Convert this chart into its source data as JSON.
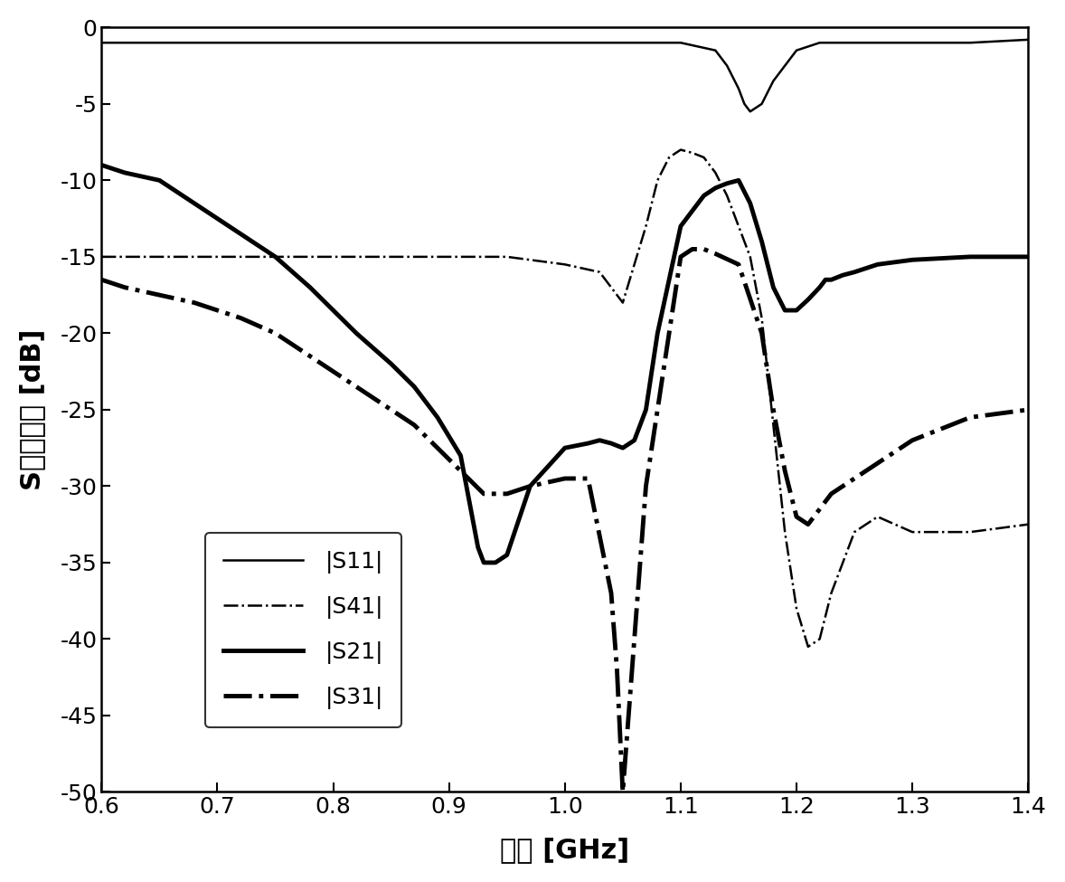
{
  "title": "",
  "xlabel": "频率 [GHz]",
  "ylabel": "S参数响应 [dB]",
  "xlim": [
    0.6,
    1.4
  ],
  "ylim": [
    -50,
    0
  ],
  "xticks": [
    0.6,
    0.7,
    0.8,
    0.9,
    1.0,
    1.1,
    1.2,
    1.3,
    1.4
  ],
  "yticks": [
    0,
    -5,
    -10,
    -15,
    -20,
    -25,
    -30,
    -35,
    -40,
    -45,
    -50
  ],
  "background_color": "#ffffff",
  "legend_labels": [
    "|S11|",
    "|S41|",
    "|S21|",
    "|S31|"
  ],
  "S11_x": [
    0.6,
    0.65,
    0.7,
    0.75,
    0.8,
    0.85,
    0.9,
    0.95,
    1.0,
    1.05,
    1.1,
    1.13,
    1.14,
    1.15,
    1.155,
    1.16,
    1.17,
    1.18,
    1.19,
    1.2,
    1.22,
    1.25,
    1.3,
    1.35,
    1.4
  ],
  "S11_y": [
    -1.0,
    -1.0,
    -1.0,
    -1.0,
    -1.0,
    -1.0,
    -1.0,
    -1.0,
    -1.0,
    -1.0,
    -1.0,
    -1.5,
    -2.5,
    -4.0,
    -5.0,
    -5.5,
    -5.0,
    -3.5,
    -2.5,
    -1.5,
    -1.0,
    -1.0,
    -1.0,
    -1.0,
    -0.8
  ],
  "S41_x": [
    0.6,
    0.65,
    0.7,
    0.75,
    0.8,
    0.85,
    0.9,
    0.95,
    1.0,
    1.03,
    1.05,
    1.07,
    1.08,
    1.09,
    1.1,
    1.11,
    1.12,
    1.13,
    1.14,
    1.15,
    1.16,
    1.17,
    1.18,
    1.19,
    1.2,
    1.21,
    1.22,
    1.23,
    1.25,
    1.27,
    1.3,
    1.35,
    1.4
  ],
  "S41_y": [
    -15.0,
    -15.0,
    -15.0,
    -15.0,
    -15.0,
    -15.0,
    -15.0,
    -15.0,
    -15.5,
    -16.0,
    -18.0,
    -13.0,
    -10.0,
    -8.5,
    -8.0,
    -8.2,
    -8.5,
    -9.5,
    -11.0,
    -13.0,
    -15.0,
    -19.0,
    -26.0,
    -33.0,
    -38.0,
    -40.5,
    -40.0,
    -37.0,
    -33.0,
    -32.0,
    -33.0,
    -33.0,
    -32.5
  ],
  "S21_x": [
    0.6,
    0.62,
    0.65,
    0.68,
    0.7,
    0.72,
    0.75,
    0.78,
    0.8,
    0.82,
    0.85,
    0.87,
    0.89,
    0.91,
    0.915,
    0.92,
    0.925,
    0.93,
    0.94,
    0.95,
    0.97,
    1.0,
    1.02,
    1.03,
    1.04,
    1.05,
    1.06,
    1.07,
    1.08,
    1.1,
    1.12,
    1.13,
    1.14,
    1.15,
    1.16,
    1.17,
    1.18,
    1.19,
    1.2,
    1.21,
    1.22,
    1.225,
    1.23,
    1.24,
    1.25,
    1.27,
    1.3,
    1.35,
    1.4
  ],
  "S21_y": [
    -9.0,
    -9.5,
    -10.0,
    -11.5,
    -12.5,
    -13.5,
    -15.0,
    -17.0,
    -18.5,
    -20.0,
    -22.0,
    -23.5,
    -25.5,
    -28.0,
    -30.0,
    -32.0,
    -34.0,
    -35.0,
    -35.0,
    -34.5,
    -30.0,
    -27.5,
    -27.2,
    -27.0,
    -27.2,
    -27.5,
    -27.0,
    -25.0,
    -20.0,
    -13.0,
    -11.0,
    -10.5,
    -10.2,
    -10.0,
    -11.5,
    -14.0,
    -17.0,
    -18.5,
    -18.5,
    -17.8,
    -17.0,
    -16.5,
    -16.5,
    -16.2,
    -16.0,
    -15.5,
    -15.2,
    -15.0,
    -15.0
  ],
  "S31_x": [
    0.6,
    0.62,
    0.65,
    0.68,
    0.7,
    0.72,
    0.75,
    0.78,
    0.8,
    0.82,
    0.85,
    0.87,
    0.89,
    0.91,
    0.93,
    0.95,
    0.97,
    1.0,
    1.02,
    1.04,
    1.045,
    1.05,
    1.055,
    1.06,
    1.065,
    1.07,
    1.08,
    1.09,
    1.1,
    1.11,
    1.12,
    1.13,
    1.15,
    1.17,
    1.18,
    1.19,
    1.2,
    1.21,
    1.22,
    1.23,
    1.25,
    1.27,
    1.3,
    1.35,
    1.4
  ],
  "S31_y": [
    -16.5,
    -17.0,
    -17.5,
    -18.0,
    -18.5,
    -19.0,
    -20.0,
    -21.5,
    -22.5,
    -23.5,
    -25.0,
    -26.0,
    -27.5,
    -29.0,
    -30.5,
    -30.5,
    -30.0,
    -29.5,
    -29.5,
    -37.0,
    -42.0,
    -50.0,
    -45.0,
    -40.0,
    -35.0,
    -30.0,
    -25.0,
    -20.0,
    -15.0,
    -14.5,
    -14.5,
    -14.8,
    -15.5,
    -20.0,
    -25.0,
    -29.0,
    -32.0,
    -32.5,
    -31.5,
    -30.5,
    -29.5,
    -28.5,
    -27.0,
    -25.5,
    -25.0
  ]
}
